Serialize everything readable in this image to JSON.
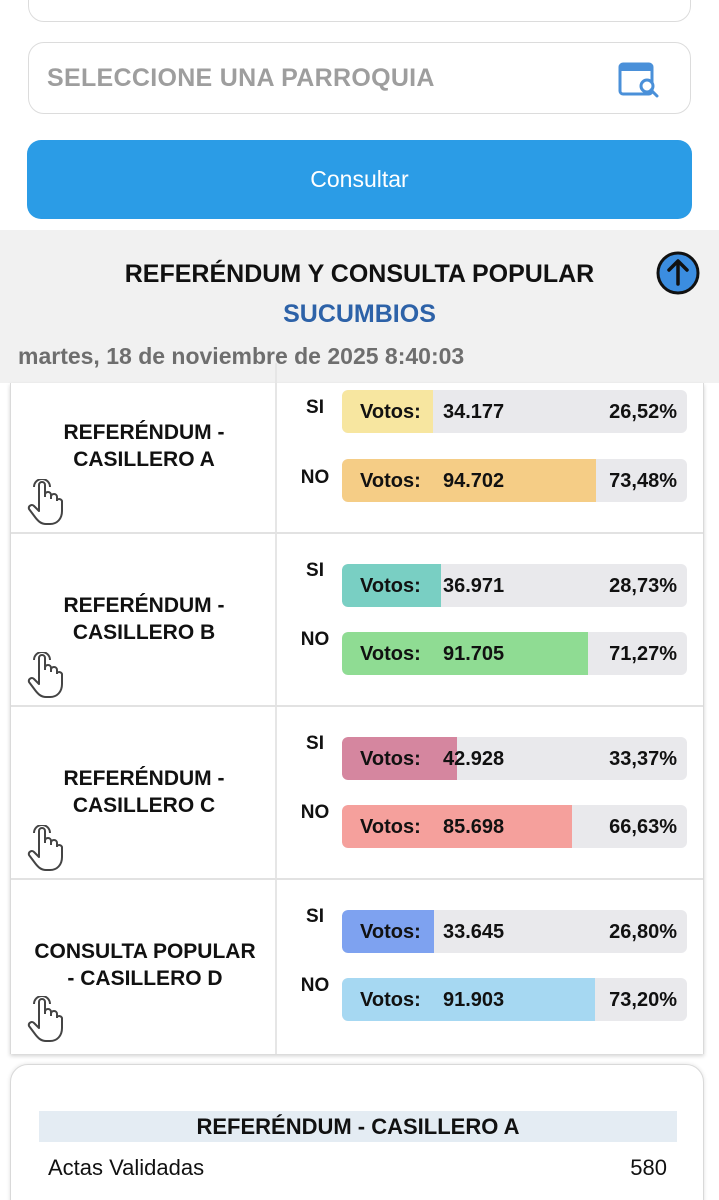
{
  "filters": {
    "parroquia_placeholder": "SELECCIONE UNA PARROQUIA",
    "icon": "search-list-icon"
  },
  "consult_button": {
    "label": "Consultar",
    "color": "#2b9ce6"
  },
  "header": {
    "title": "REFERÉNDUM Y CONSULTA POPULAR",
    "province": "SUCUMBIOS",
    "datetime": "martes, 18 de noviembre de 2025 8:40:03",
    "scroll_icon": "arrow-up-circle-icon"
  },
  "results": [
    {
      "name_line1": "REFERÉNDUM -",
      "name_line2": "CASILLERO A",
      "options": [
        {
          "label": "SI",
          "votos_label": "Votos:",
          "votos": "34.177",
          "percent": "26,52%",
          "fraction": 0.2652,
          "color": "#f7e6a0"
        },
        {
          "label": "NO",
          "votos_label": "Votos:",
          "votos": "94.702",
          "percent": "73,48%",
          "fraction": 0.7348,
          "color": "#f5cd86"
        }
      ]
    },
    {
      "name_line1": "REFERÉNDUM -",
      "name_line2": "CASILLERO B",
      "options": [
        {
          "label": "SI",
          "votos_label": "Votos:",
          "votos": "36.971",
          "percent": "28,73%",
          "fraction": 0.2873,
          "color": "#79cfc3"
        },
        {
          "label": "NO",
          "votos_label": "Votos:",
          "votos": "91.705",
          "percent": "71,27%",
          "fraction": 0.7127,
          "color": "#8fdc93"
        }
      ]
    },
    {
      "name_line1": "REFERÉNDUM -",
      "name_line2": "CASILLERO C",
      "options": [
        {
          "label": "SI",
          "votos_label": "Votos:",
          "votos": "42.928",
          "percent": "33,37%",
          "fraction": 0.3337,
          "color": "#d5869f"
        },
        {
          "label": "NO",
          "votos_label": "Votos:",
          "votos": "85.698",
          "percent": "66,63%",
          "fraction": 0.6663,
          "color": "#f5a09c"
        }
      ]
    },
    {
      "name_line1": "CONSULTA POPULAR",
      "name_line2": "- CASILLERO D",
      "options": [
        {
          "label": "SI",
          "votos_label": "Votos:",
          "votos": "33.645",
          "percent": "26,80%",
          "fraction": 0.268,
          "color": "#7ea2f0"
        },
        {
          "label": "NO",
          "votos_label": "Votos:",
          "votos": "91.903",
          "percent": "73,20%",
          "fraction": 0.732,
          "color": "#a6d8f2"
        }
      ]
    }
  ],
  "summary": {
    "title": "REFERÉNDUM - CASILLERO A",
    "actas_label": "Actas Validadas",
    "actas_value": "580"
  }
}
